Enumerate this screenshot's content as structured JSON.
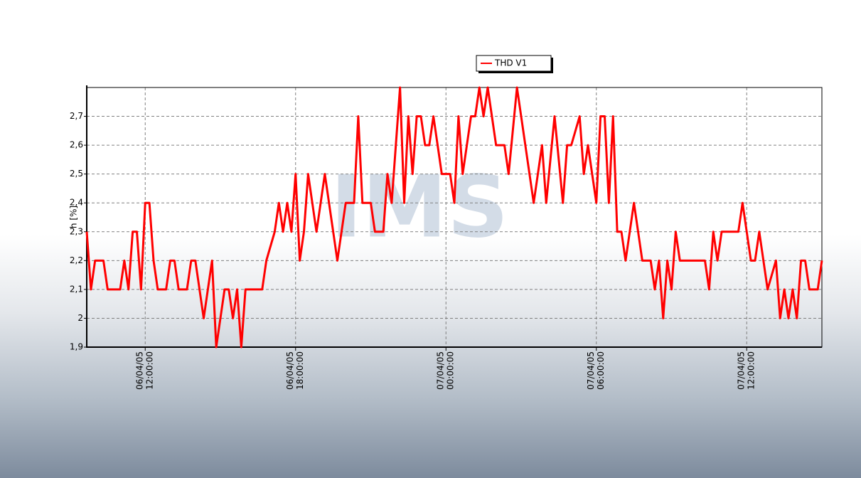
{
  "chart_data": {
    "type": "line",
    "y_label": "h [%]",
    "watermark": "IMS",
    "legend": "top",
    "grid": true,
    "ylim": [
      1.9,
      2.8
    ],
    "yticks": [
      {
        "value": 1.9,
        "label": "1,9"
      },
      2,
      {
        "value": 2.1,
        "label": "2,1"
      },
      {
        "value": 2.2,
        "label": "2,2"
      },
      {
        "value": 2.3,
        "label": "2,3"
      },
      {
        "value": 2.4,
        "label": "2,4"
      },
      {
        "value": 2.5,
        "label": "2,5"
      },
      {
        "value": 2.6,
        "label": "2,6"
      },
      {
        "value": 2.7,
        "label": "2,7"
      }
    ],
    "xlim": [
      "06/04/05 09:40:00",
      "07/04/05 15:00:00"
    ],
    "xticks": [
      "06/04/05 12:00:00",
      "06/04/05 18:00:00",
      "07/04/05 00:00:00",
      "07/04/05 06:00:00",
      "07/04/05 12:00:00"
    ],
    "x": [
      "06/04/05 09:40:00",
      "06/04/05 09:50:00",
      "06/04/05 10:00:00",
      "06/04/05 10:20:00",
      "06/04/05 10:30:00",
      "06/04/05 11:00:00",
      "06/04/05 11:10:00",
      "06/04/05 11:20:00",
      "06/04/05 11:30:00",
      "06/04/05 11:40:00",
      "06/04/05 11:50:00",
      "06/04/05 12:00:00",
      "06/04/05 12:10:00",
      "06/04/05 12:20:00",
      "06/04/05 12:30:00",
      "06/04/05 12:50:00",
      "06/04/05 13:00:00",
      "06/04/05 13:10:00",
      "06/04/05 13:20:00",
      "06/04/05 13:40:00",
      "06/04/05 13:50:00",
      "06/04/05 14:00:00",
      "06/04/05 14:20:00",
      "06/04/05 14:30:00",
      "06/04/05 14:40:00",
      "06/04/05 14:50:00",
      "06/04/05 15:00:00",
      "06/04/05 15:10:00",
      "06/04/05 15:20:00",
      "06/04/05 15:30:00",
      "06/04/05 15:40:00",
      "06/04/05 15:50:00",
      "06/04/05 16:00:00",
      "06/04/05 16:40:00",
      "06/04/05 16:50:00",
      "06/04/05 17:10:00",
      "06/04/05 17:20:00",
      "06/04/05 17:30:00",
      "06/04/05 17:40:00",
      "06/04/05 17:50:00",
      "06/04/05 18:00:00",
      "06/04/05 18:10:00",
      "06/04/05 18:20:00",
      "06/04/05 18:30:00",
      "06/04/05 18:50:00",
      "06/04/05 19:10:00",
      "06/04/05 19:20:00",
      "06/04/05 19:40:00",
      "06/04/05 20:00:00",
      "06/04/05 20:20:00",
      "06/04/05 20:30:00",
      "06/04/05 20:40:00",
      "06/04/05 21:00:00",
      "06/04/05 21:10:00",
      "06/04/05 21:30:00",
      "06/04/05 21:40:00",
      "06/04/05 21:50:00",
      "06/04/05 22:00:00",
      "06/04/05 22:10:00",
      "06/04/05 22:20:00",
      "06/04/05 22:30:00",
      "06/04/05 22:40:00",
      "06/04/05 22:50:00",
      "06/04/05 23:00:00",
      "06/04/05 23:10:00",
      "06/04/05 23:20:00",
      "06/04/05 23:30:00",
      "06/04/05 23:50:00",
      "07/04/05 00:10:00",
      "07/04/05 00:20:00",
      "07/04/05 00:30:00",
      "07/04/05 00:40:00",
      "07/04/05 01:00:00",
      "07/04/05 01:10:00",
      "07/04/05 01:20:00",
      "07/04/05 01:30:00",
      "07/04/05 01:40:00",
      "07/04/05 02:00:00",
      "07/04/05 02:10:00",
      "07/04/05 02:20:00",
      "07/04/05 02:30:00",
      "07/04/05 02:50:00",
      "07/04/05 03:30:00",
      "07/04/05 03:50:00",
      "07/04/05 04:00:00",
      "07/04/05 04:20:00",
      "07/04/05 04:40:00",
      "07/04/05 04:50:00",
      "07/04/05 05:00:00",
      "07/04/05 05:20:00",
      "07/04/05 05:30:00",
      "07/04/05 05:40:00",
      "07/04/05 06:00:00",
      "07/04/05 06:10:00",
      "07/04/05 06:20:00",
      "07/04/05 06:30:00",
      "07/04/05 06:40:00",
      "07/04/05 06:50:00",
      "07/04/05 07:00:00",
      "07/04/05 07:10:00",
      "07/04/05 07:30:00",
      "07/04/05 07:50:00",
      "07/04/05 08:10:00",
      "07/04/05 08:20:00",
      "07/04/05 08:30:00",
      "07/04/05 08:40:00",
      "07/04/05 08:50:00",
      "07/04/05 09:00:00",
      "07/04/05 09:10:00",
      "07/04/05 09:20:00",
      "07/04/05 10:20:00",
      "07/04/05 10:30:00",
      "07/04/05 10:40:00",
      "07/04/05 10:50:00",
      "07/04/05 11:00:00",
      "07/04/05 11:40:00",
      "07/04/05 11:50:00",
      "07/04/05 12:10:00",
      "07/04/05 12:20:00",
      "07/04/05 12:30:00",
      "07/04/05 12:50:00",
      "07/04/05 13:10:00",
      "07/04/05 13:20:00",
      "07/04/05 13:30:00",
      "07/04/05 13:40:00",
      "07/04/05 13:50:00",
      "07/04/05 14:00:00",
      "07/04/05 14:10:00",
      "07/04/05 14:20:00",
      "07/04/05 14:30:00",
      "07/04/05 14:50:00",
      "07/04/05 15:00:00"
    ],
    "series": [
      {
        "name": "THD V1",
        "color": "#ff0000",
        "values": [
          2.3,
          2.1,
          2.2,
          2.2,
          2.1,
          2.1,
          2.2,
          2.1,
          2.3,
          2.3,
          2.1,
          2.4,
          2.4,
          2.2,
          2.1,
          2.1,
          2.2,
          2.2,
          2.1,
          2.1,
          2.2,
          2.2,
          2.0,
          2.1,
          2.2,
          1.9,
          2.0,
          2.1,
          2.1,
          2.0,
          2.1,
          1.9,
          2.1,
          2.1,
          2.2,
          2.3,
          2.4,
          2.3,
          2.4,
          2.3,
          2.5,
          2.2,
          2.3,
          2.5,
          2.3,
          2.5,
          2.4,
          2.2,
          2.4,
          2.4,
          2.7,
          2.4,
          2.4,
          2.3,
          2.3,
          2.5,
          2.4,
          2.6,
          2.8,
          2.4,
          2.7,
          2.5,
          2.7,
          2.7,
          2.6,
          2.6,
          2.7,
          2.5,
          2.5,
          2.4,
          2.7,
          2.5,
          2.7,
          2.7,
          2.8,
          2.7,
          2.8,
          2.6,
          2.6,
          2.6,
          2.5,
          2.8,
          2.4,
          2.6,
          2.4,
          2.7,
          2.4,
          2.6,
          2.6,
          2.7,
          2.5,
          2.6,
          2.4,
          2.7,
          2.7,
          2.4,
          2.7,
          2.3,
          2.3,
          2.2,
          2.4,
          2.2,
          2.2,
          2.1,
          2.2,
          2.0,
          2.2,
          2.1,
          2.3,
          2.2,
          2.2,
          2.1,
          2.3,
          2.2,
          2.3,
          2.3,
          2.4,
          2.2,
          2.2,
          2.3,
          2.1,
          2.2,
          2.0,
          2.1,
          2.0,
          2.1,
          2.0,
          2.2,
          2.2,
          2.1,
          2.1,
          2.2
        ]
      }
    ]
  }
}
